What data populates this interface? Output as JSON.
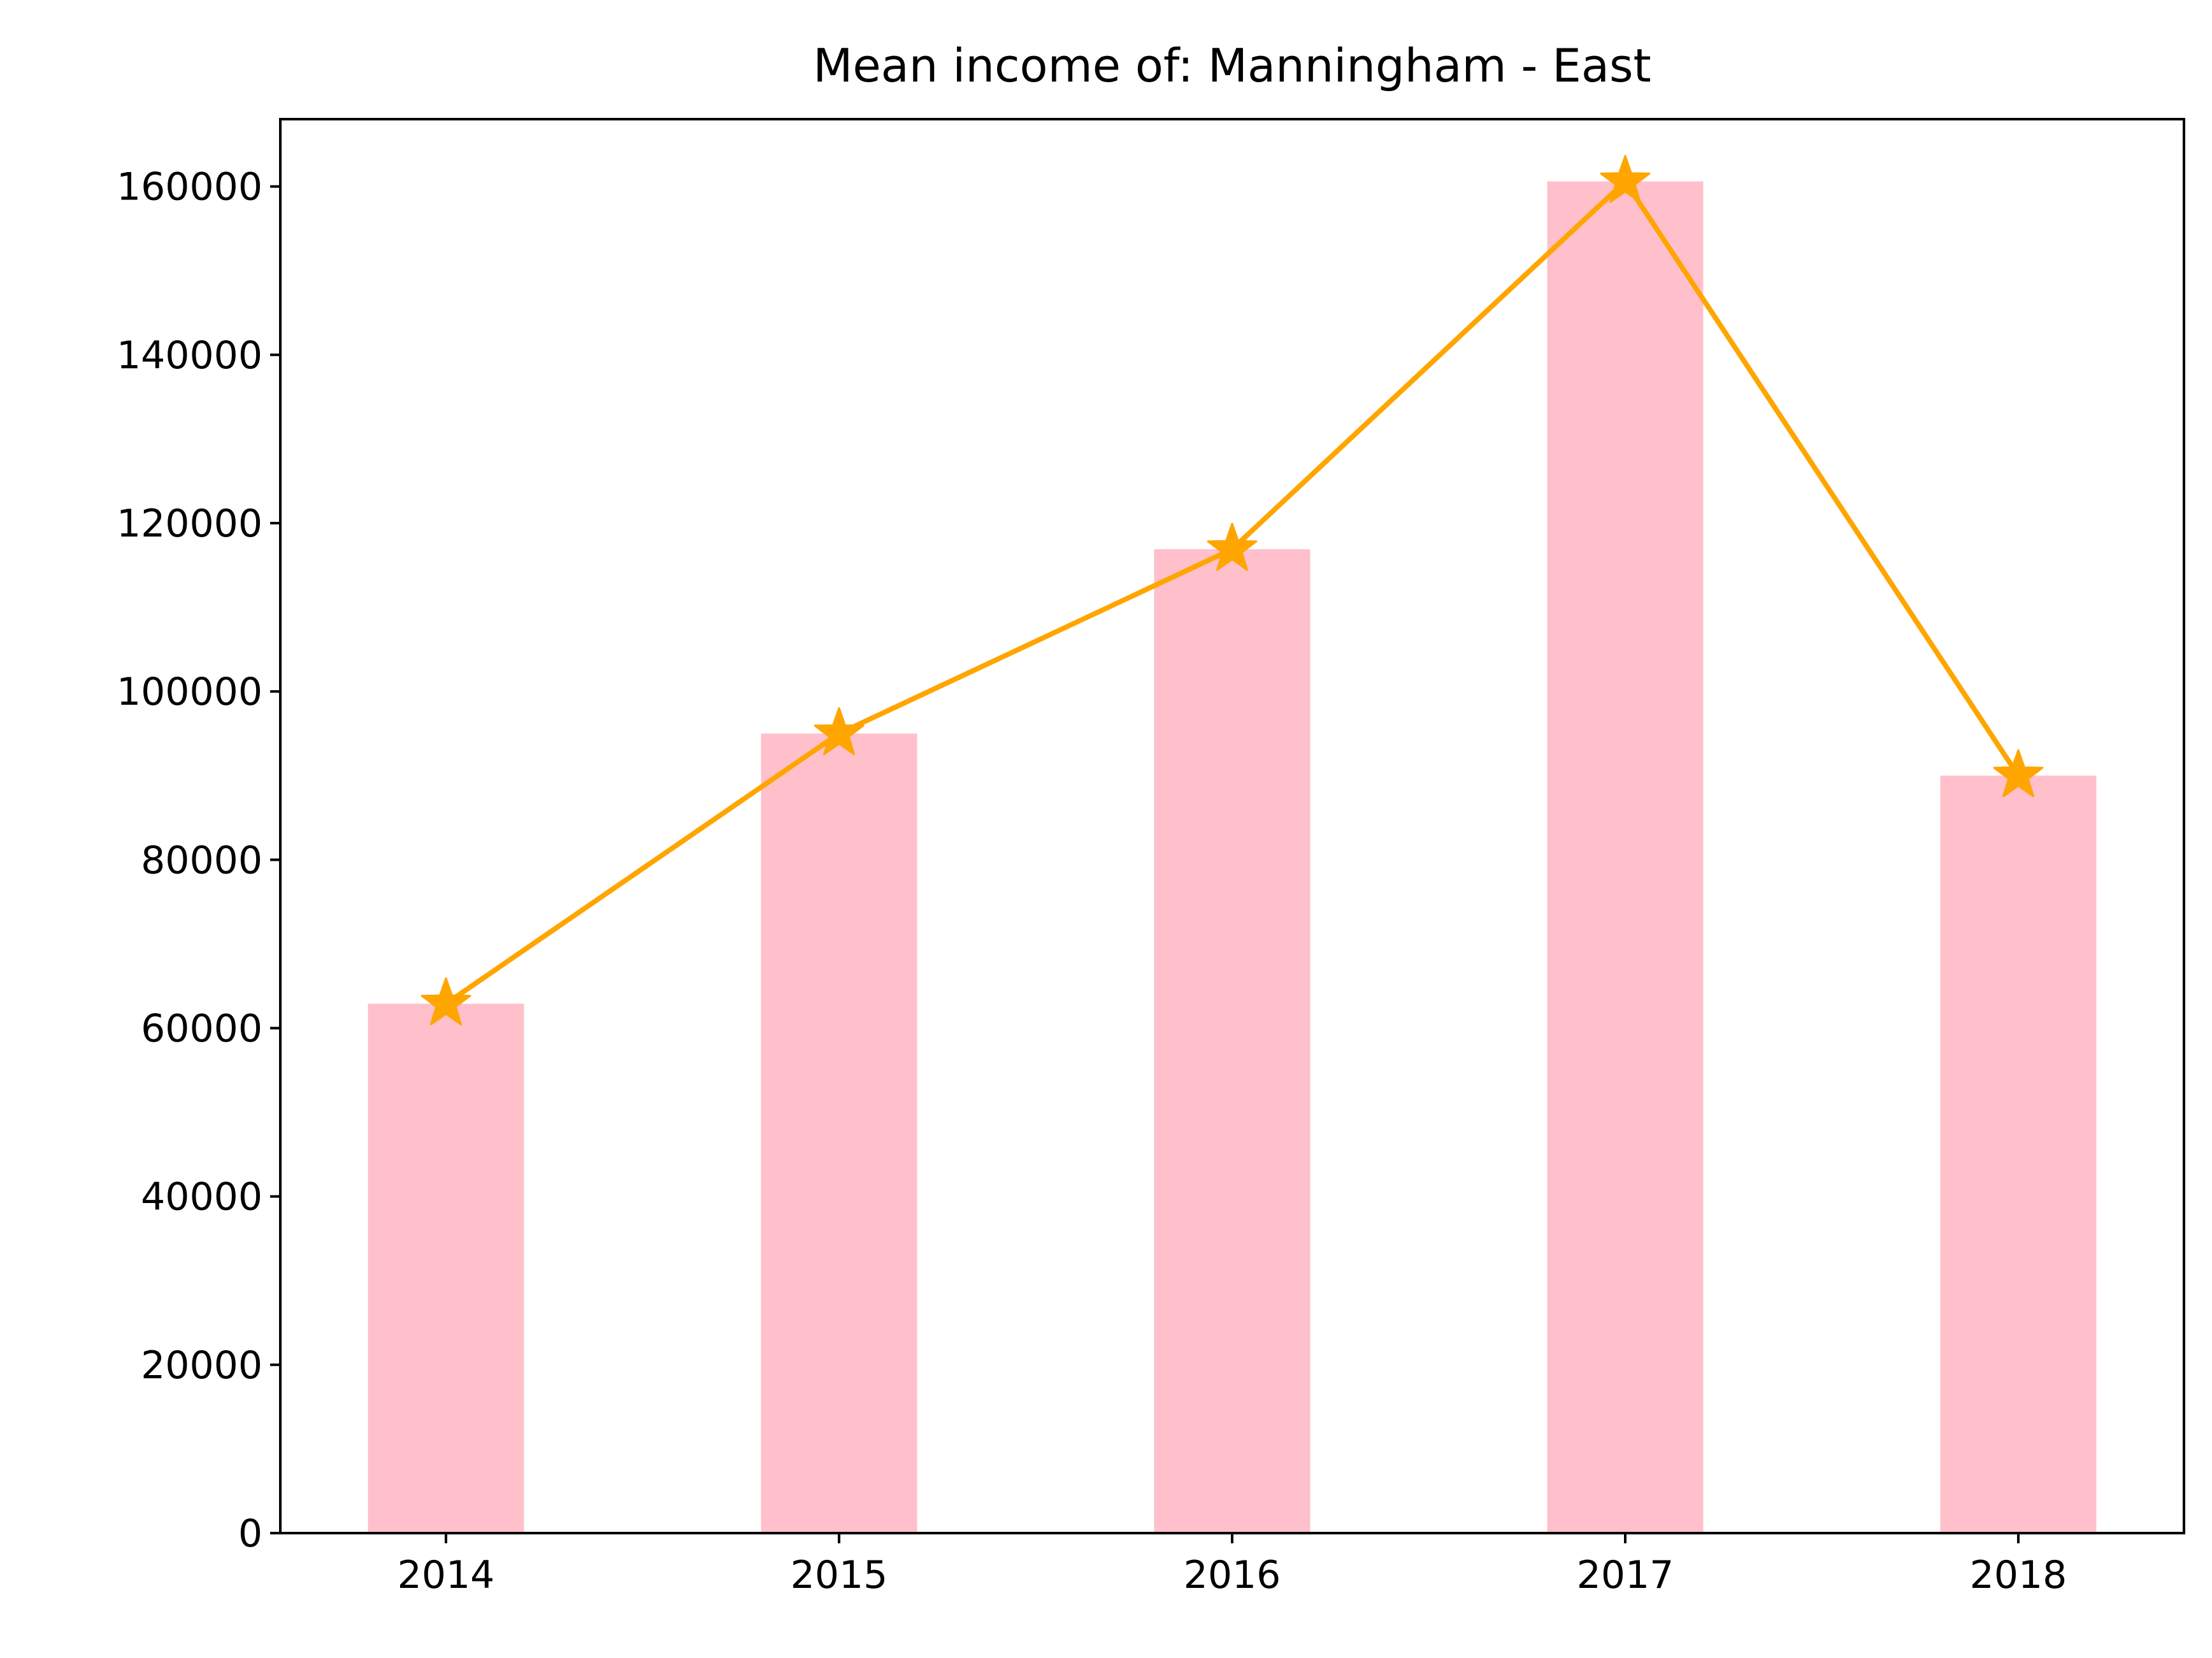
{
  "chart_data": {
    "type": "bar",
    "title": "Mean income of: Manningham - East",
    "xlabel": "",
    "ylabel": "",
    "categories": [
      "2014",
      "2015",
      "2016",
      "2017",
      "2018"
    ],
    "values": [
      62900,
      95000,
      116900,
      160600,
      90000
    ],
    "line_values": [
      62900,
      95000,
      116900,
      160600,
      90000
    ],
    "ylim": [
      0,
      168000
    ],
    "yticks": [
      0,
      20000,
      40000,
      60000,
      80000,
      100000,
      120000,
      140000,
      160000
    ],
    "grid": false,
    "legend": "none",
    "bar_color": "#ffc0cb",
    "line_color": "#ffa500",
    "line_marker": "star"
  }
}
